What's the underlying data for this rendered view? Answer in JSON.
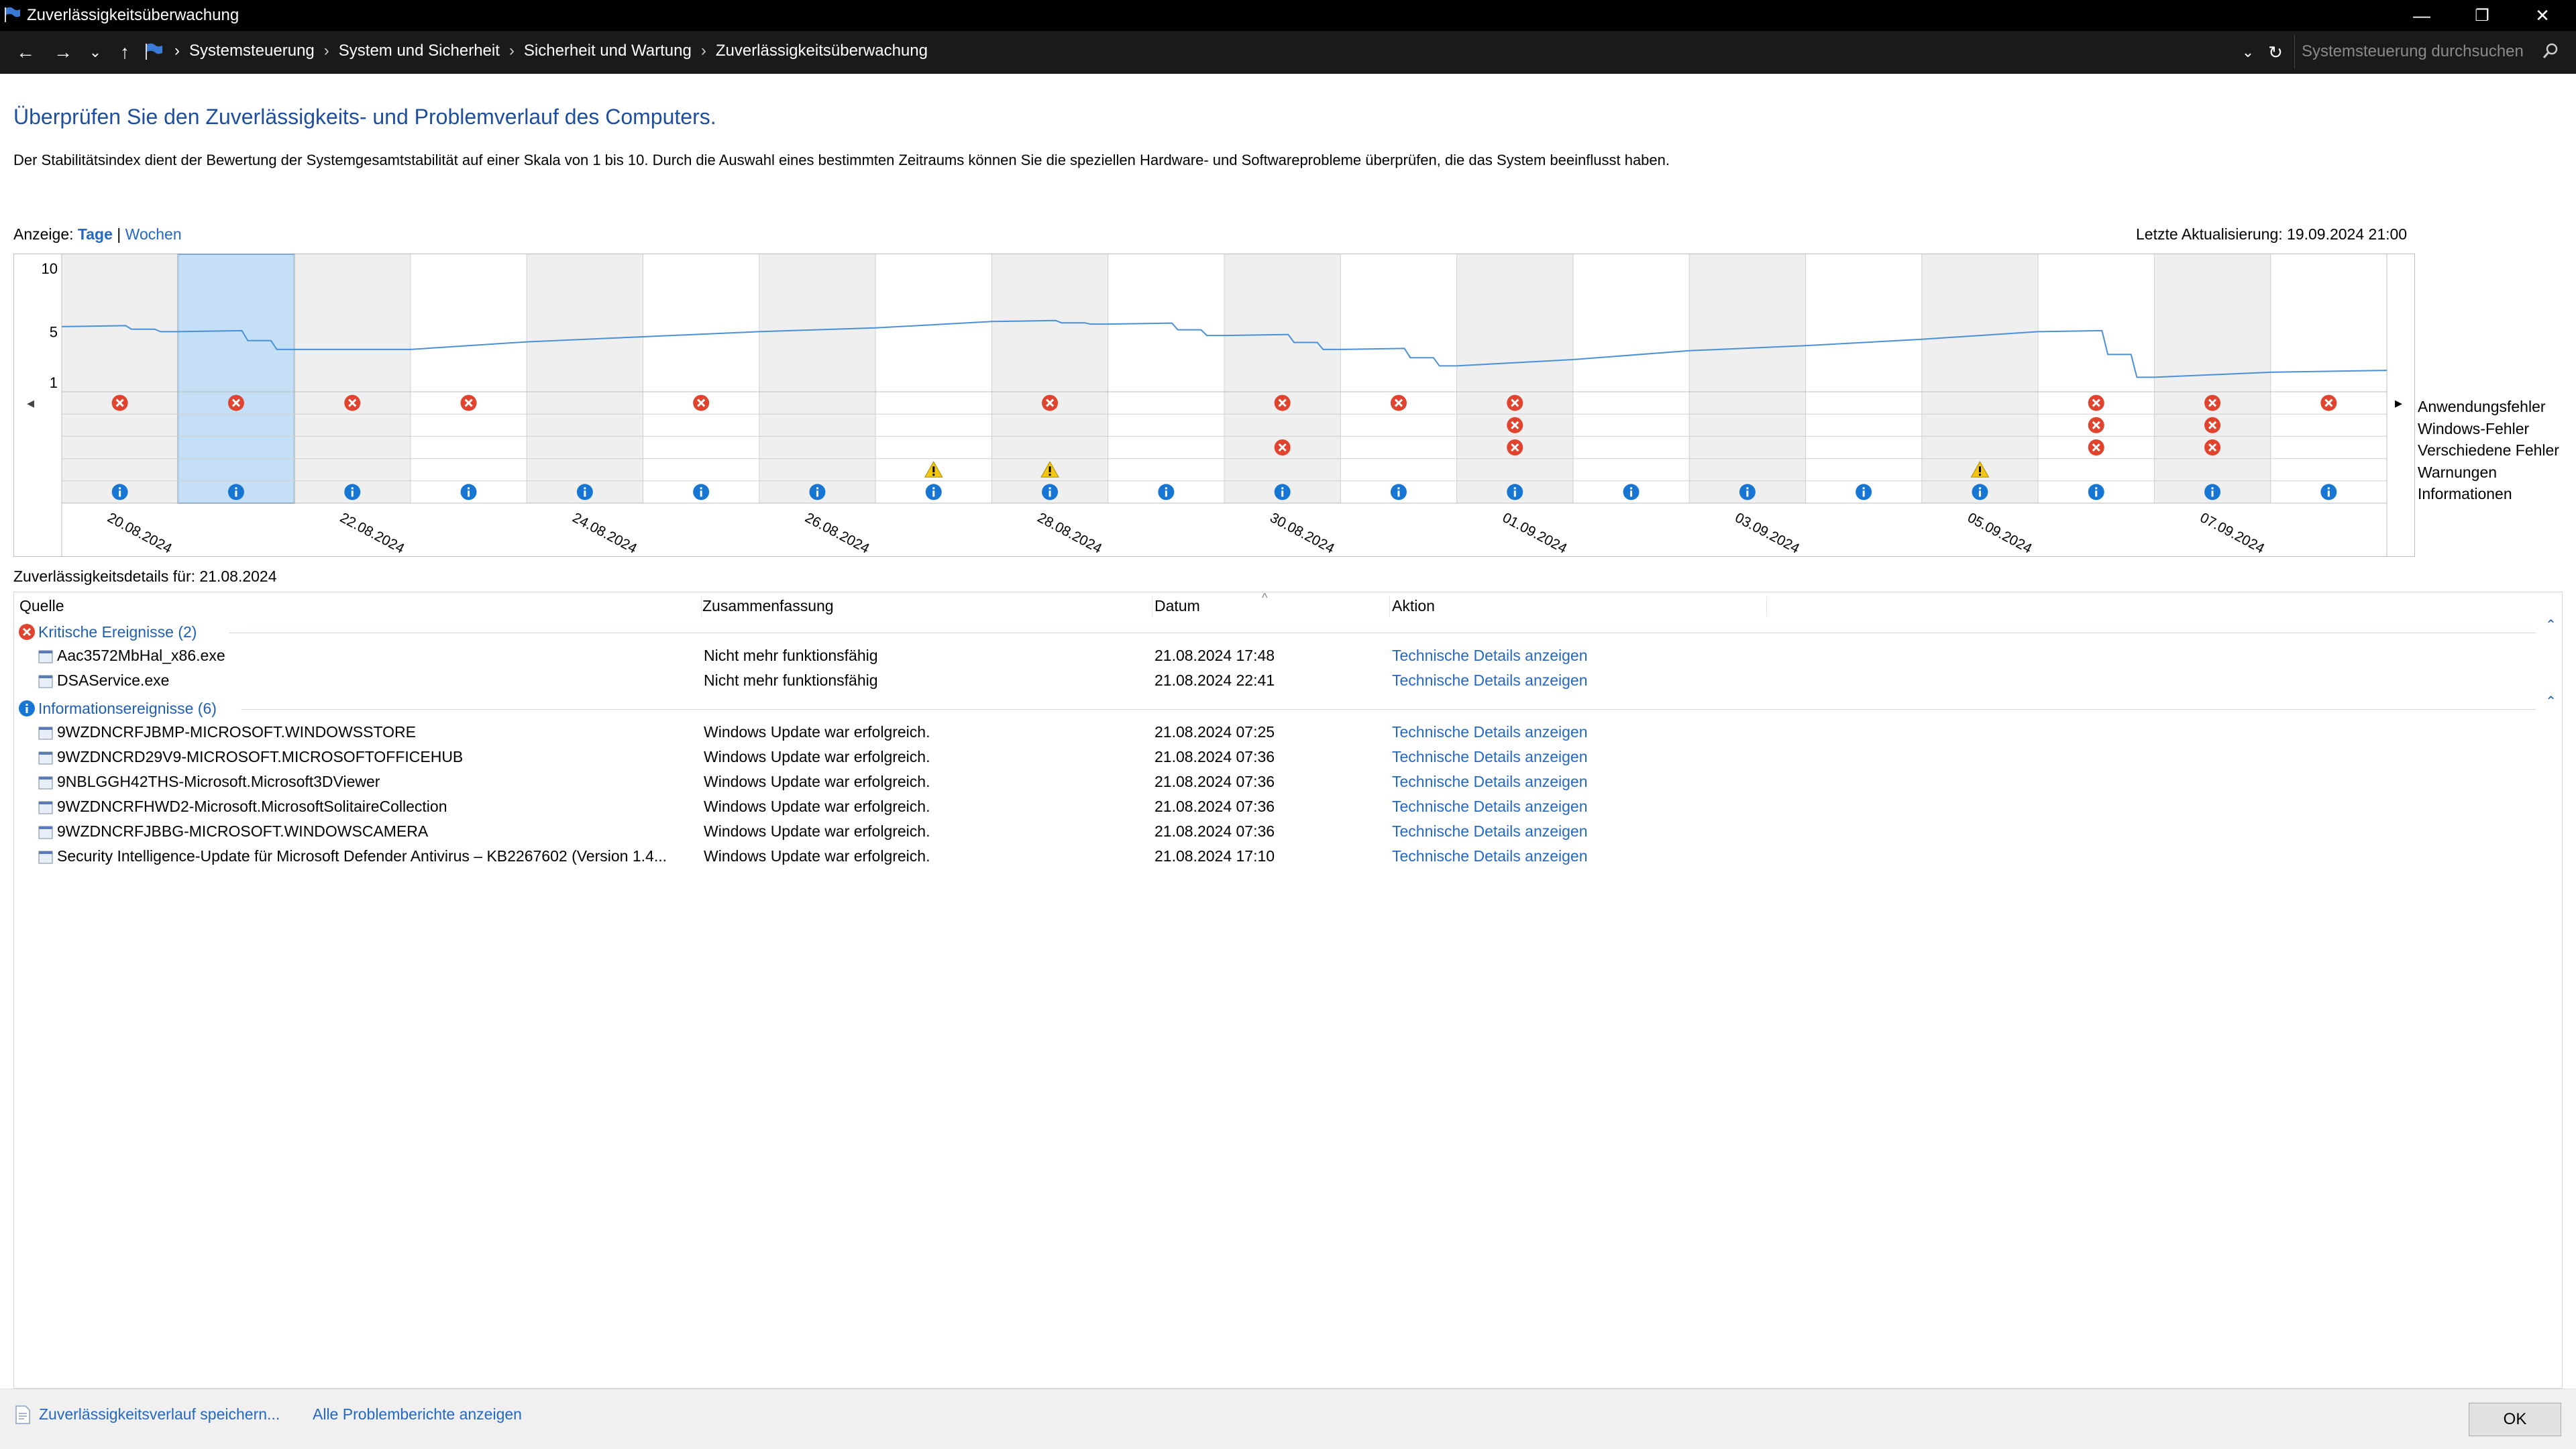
{
  "window": {
    "title": "Zuverlässigkeitsüberwachung",
    "minimize": "—",
    "restore": "❐",
    "close": "✕"
  },
  "nav": {
    "back": "←",
    "forward": "→",
    "recent": "⌄",
    "up": "↑",
    "breadcrumbs": [
      "Systemsteuerung",
      "System und Sicherheit",
      "Sicherheit und Wartung",
      "Zuverlässigkeitsüberwachung"
    ],
    "breadcrumb_sep": "›",
    "dropdown": "⌄",
    "refresh": "↻",
    "search_placeholder": "Systemsteuerung durchsuchen"
  },
  "page": {
    "heading": "Überprüfen Sie den Zuverlässigkeits- und Problemverlauf des Computers.",
    "description": "Der Stabilitätsindex dient der Bewertung der Systemgesamtstabilität auf einer Skala von 1 bis 10. Durch die Auswahl eines bestimmten Zeitraums können Sie die speziellen Hardware- und Softwareprobleme überprüfen, die das System beeinflusst haben.",
    "view_label": "Anzeige:",
    "view_days": "Tage",
    "view_sep": "|",
    "view_weeks": "Wochen",
    "last_update": "Letzte Aktualisierung: 19.09.2024 21:00"
  },
  "chart_data": {
    "type": "line",
    "y_ticks": [
      "10",
      "5",
      "1"
    ],
    "ylim": [
      1,
      10
    ],
    "days": [
      "20.08.",
      "21.08.",
      "22.08.",
      "23.08.",
      "24.08.",
      "25.08.",
      "26.08.",
      "27.08.",
      "28.08.",
      "29.08.",
      "30.08.",
      "31.08.",
      "01.09.",
      "02.09.",
      "03.09.",
      "04.09.",
      "05.09.",
      "06.09.",
      "07.09.",
      "08.09."
    ],
    "date_labels": [
      "20.08.2024",
      "22.08.2024",
      "24.08.2024",
      "26.08.2024",
      "28.08.2024",
      "30.08.2024",
      "01.09.2024",
      "03.09.2024",
      "05.09.2024",
      "07.09.2024"
    ],
    "selected_day": 1,
    "stability_index": [
      5.4,
      5.0,
      3.6,
      3.6,
      4.2,
      4.6,
      5.0,
      5.3,
      5.8,
      5.6,
      4.7,
      3.6,
      2.3,
      2.8,
      3.5,
      3.9,
      4.4,
      5.0,
      1.4,
      1.8
    ],
    "categories": [
      "Anwendungsfehler",
      "Windows-Fehler",
      "Verschiedene Fehler",
      "Warnungen",
      "Informationen"
    ],
    "events": {
      "Anwendungsfehler": [
        0,
        1,
        2,
        3,
        5,
        8,
        10,
        11,
        12,
        17,
        18,
        19
      ],
      "Windows-Fehler": [
        12,
        17,
        18
      ],
      "Verschiedene Fehler": [
        10,
        12,
        17,
        18
      ],
      "Warnungen": [
        7,
        8,
        16
      ],
      "Informationen": [
        0,
        1,
        2,
        3,
        4,
        5,
        6,
        7,
        8,
        9,
        10,
        11,
        12,
        13,
        14,
        15,
        16,
        17,
        18,
        19
      ]
    },
    "grid": true,
    "nav_left": "◂",
    "nav_right": "▸"
  },
  "details": {
    "label": "Zuverlässigkeitsdetails für: 21.08.2024",
    "columns": [
      "Quelle",
      "Zusammenfassung",
      "Datum",
      "Aktion"
    ],
    "sort_indicator": "^",
    "groups": [
      {
        "title": "Kritische Ereignisse (2)",
        "icon": "error-icon",
        "collapse": "⌃",
        "rows": [
          {
            "source": "Aac3572MbHal_x86.exe",
            "summary": "Nicht mehr funktionsfähig",
            "date": "21.08.2024 17:48",
            "action": "Technische Details anzeigen"
          },
          {
            "source": "DSAService.exe",
            "summary": "Nicht mehr funktionsfähig",
            "date": "21.08.2024 22:41",
            "action": "Technische Details anzeigen"
          }
        ]
      },
      {
        "title": "Informationsereignisse (6)",
        "icon": "info-icon",
        "collapse": "⌃",
        "rows": [
          {
            "source": "9WZDNCRFJBMP-MICROSOFT.WINDOWSSTORE",
            "summary": "Windows Update war erfolgreich.",
            "date": "21.08.2024 07:25",
            "action": "Technische Details anzeigen"
          },
          {
            "source": "9WZDNCRD29V9-MICROSOFT.MICROSOFTOFFICEHUB",
            "summary": "Windows Update war erfolgreich.",
            "date": "21.08.2024 07:36",
            "action": "Technische Details anzeigen"
          },
          {
            "source": "9NBLGGH42THS-Microsoft.Microsoft3DViewer",
            "summary": "Windows Update war erfolgreich.",
            "date": "21.08.2024 07:36",
            "action": "Technische Details anzeigen"
          },
          {
            "source": "9WZDNCRFHWD2-Microsoft.MicrosoftSolitaireCollection",
            "summary": "Windows Update war erfolgreich.",
            "date": "21.08.2024 07:36",
            "action": "Technische Details anzeigen"
          },
          {
            "source": "9WZDNCRFJBBG-MICROSOFT.WINDOWSCAMERA",
            "summary": "Windows Update war erfolgreich.",
            "date": "21.08.2024 07:36",
            "action": "Technische Details anzeigen"
          },
          {
            "source": "Security Intelligence-Update für Microsoft Defender Antivirus – KB2267602 (Version 1.4...",
            "summary": "Windows Update war erfolgreich.",
            "date": "21.08.2024 17:10",
            "action": "Technische Details anzeigen"
          }
        ]
      }
    ]
  },
  "footer": {
    "save_history": "Zuverlässigkeitsverlauf speichern...",
    "all_reports": "Alle Problemberichte anzeigen",
    "ok": "OK"
  },
  "colors": {
    "accent": "#2468c4",
    "heading": "#1e4e9e",
    "line": "#4a90d9",
    "selection": "#c5dff7",
    "error": "#e0442f",
    "warning": "#f2c70e",
    "info": "#1776d4"
  }
}
